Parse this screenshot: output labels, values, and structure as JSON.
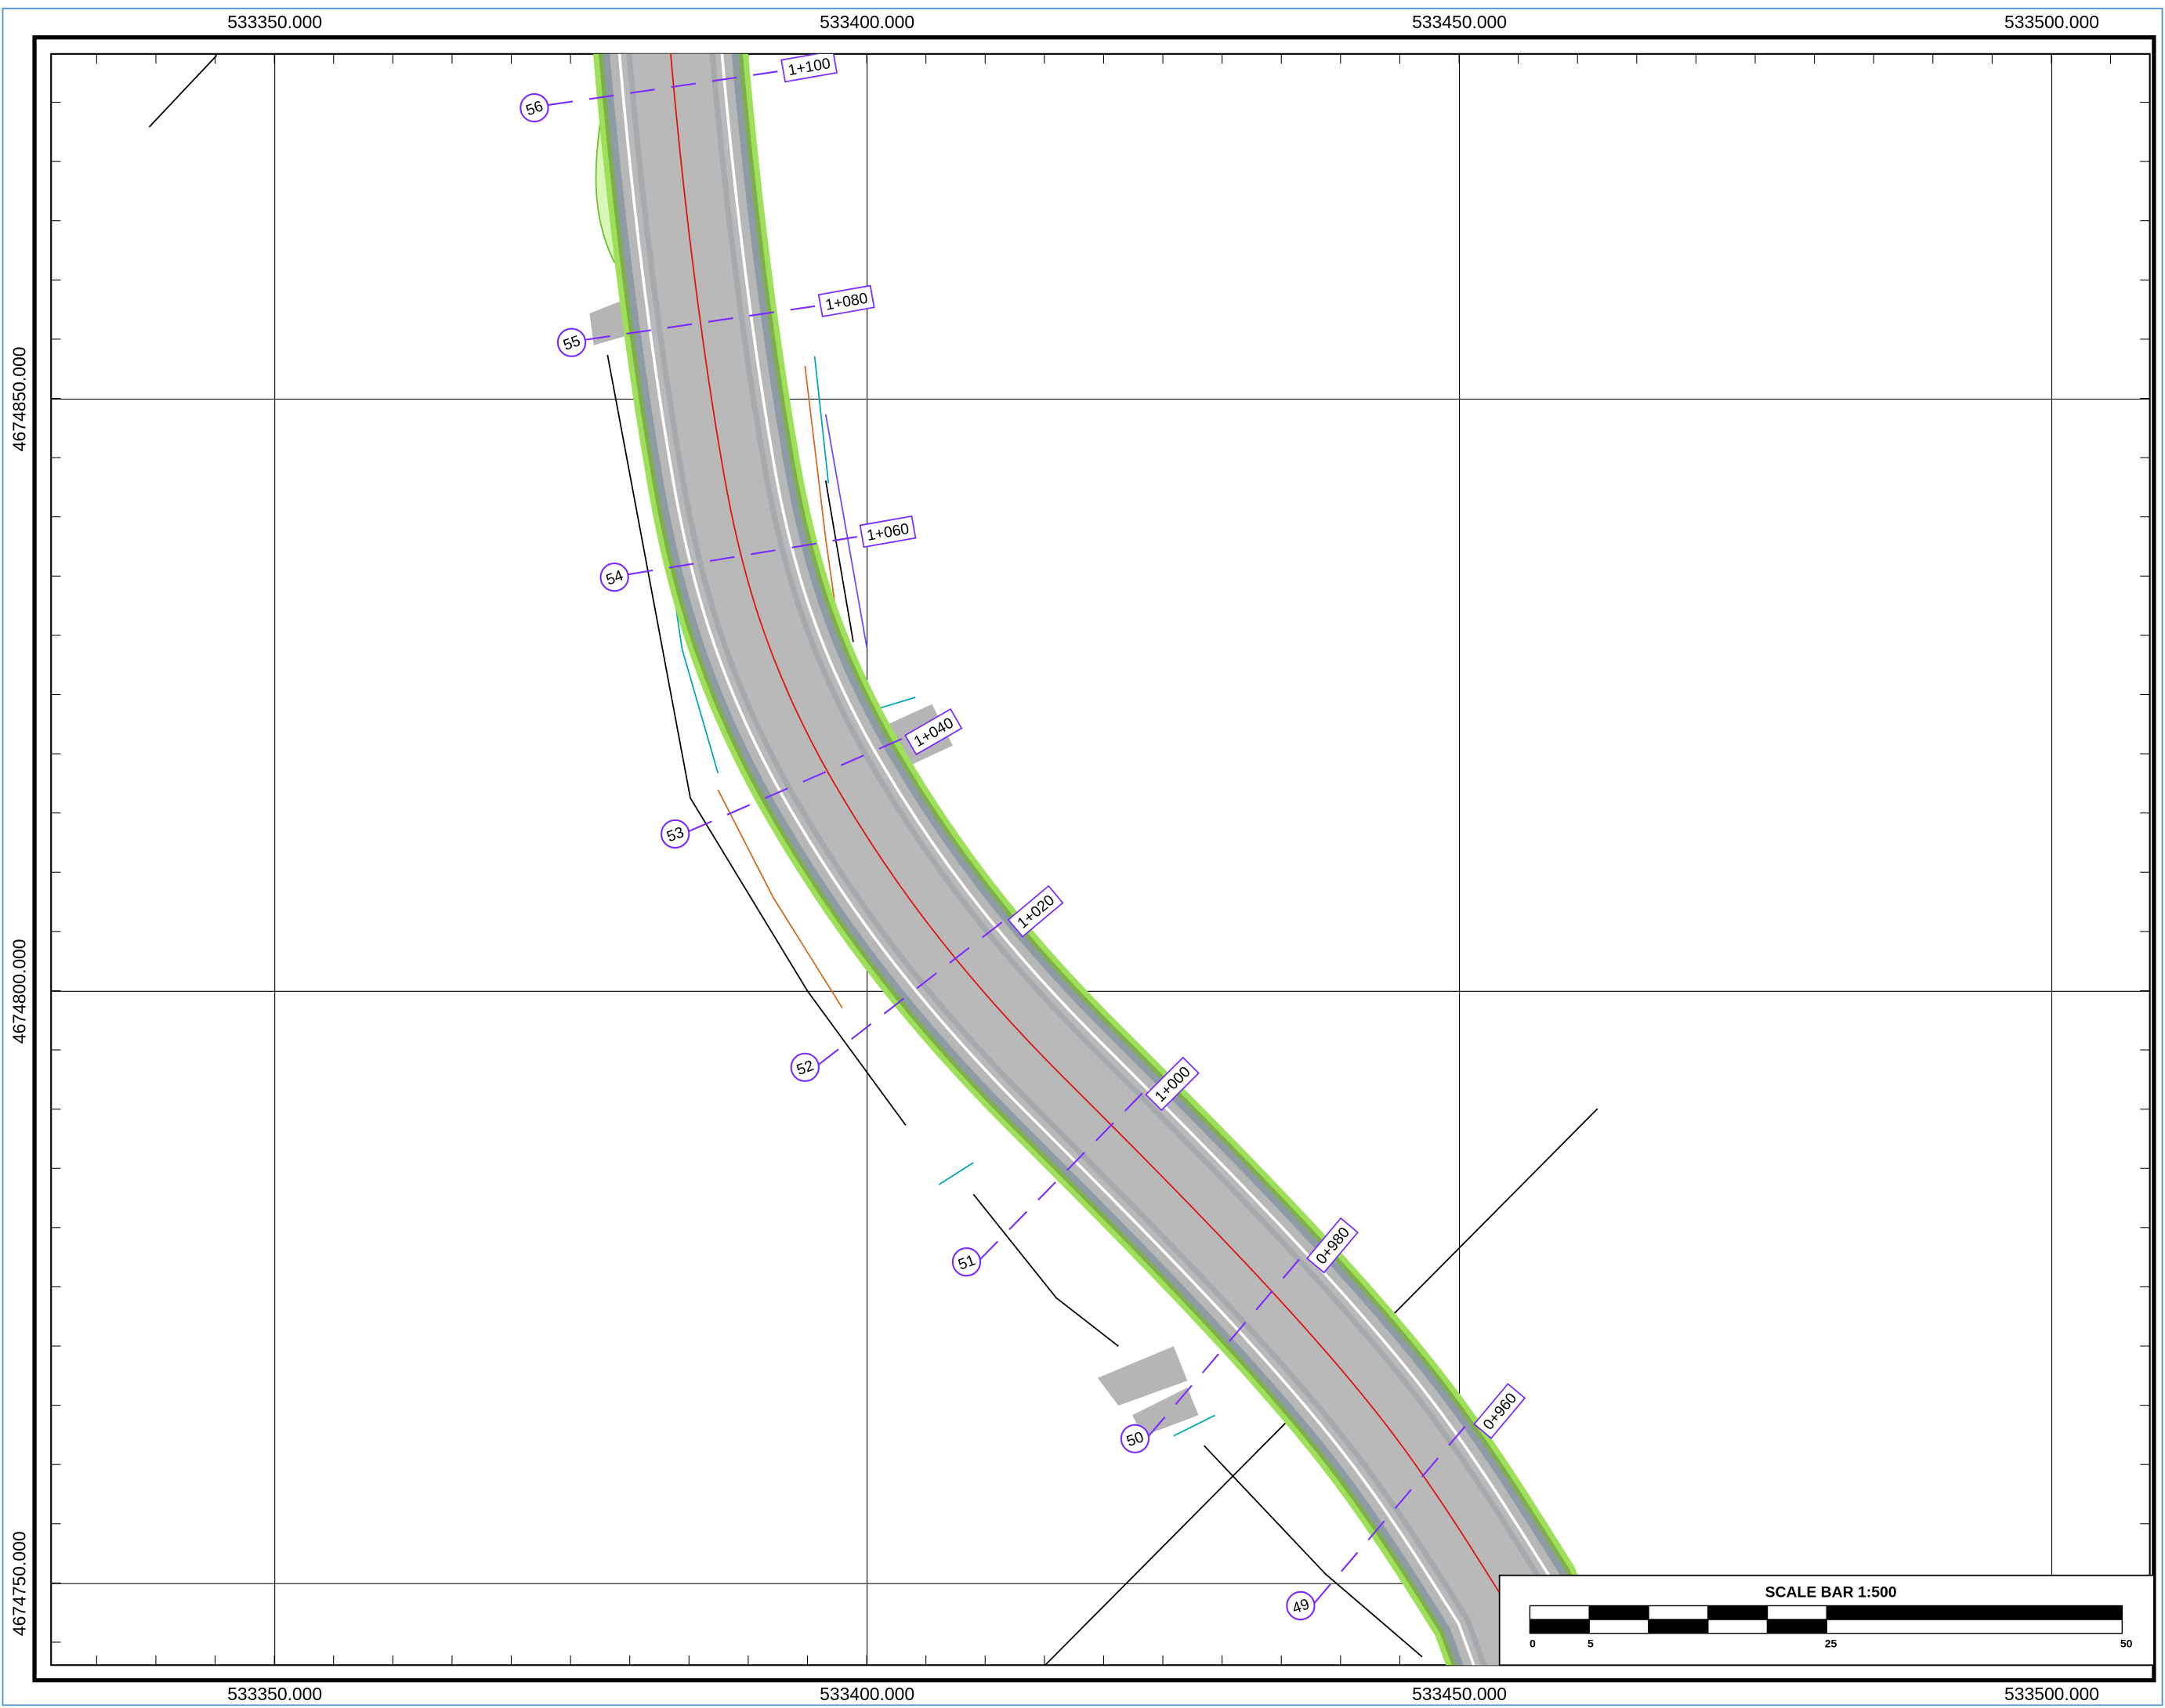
{
  "grid": {
    "top_labels": [
      "533350.000",
      "533400.000",
      "533450.000",
      "533500.000"
    ],
    "bottom_labels": [
      "533350.000",
      "533400.000",
      "533450.000",
      "533500.000"
    ],
    "left_labels": [
      "4674850.000",
      "4674800.000",
      "4674750.000"
    ]
  },
  "stations": [
    "1+100",
    "1+080",
    "1+060",
    "1+040",
    "1+020",
    "1+000",
    "0+980",
    "0+960"
  ],
  "sections": [
    "56",
    "55",
    "54",
    "53",
    "52",
    "51",
    "50",
    "49"
  ],
  "scale_bar": {
    "title": "SCALE BAR 1:500",
    "labels": [
      "0",
      "5",
      "25",
      "50"
    ]
  }
}
